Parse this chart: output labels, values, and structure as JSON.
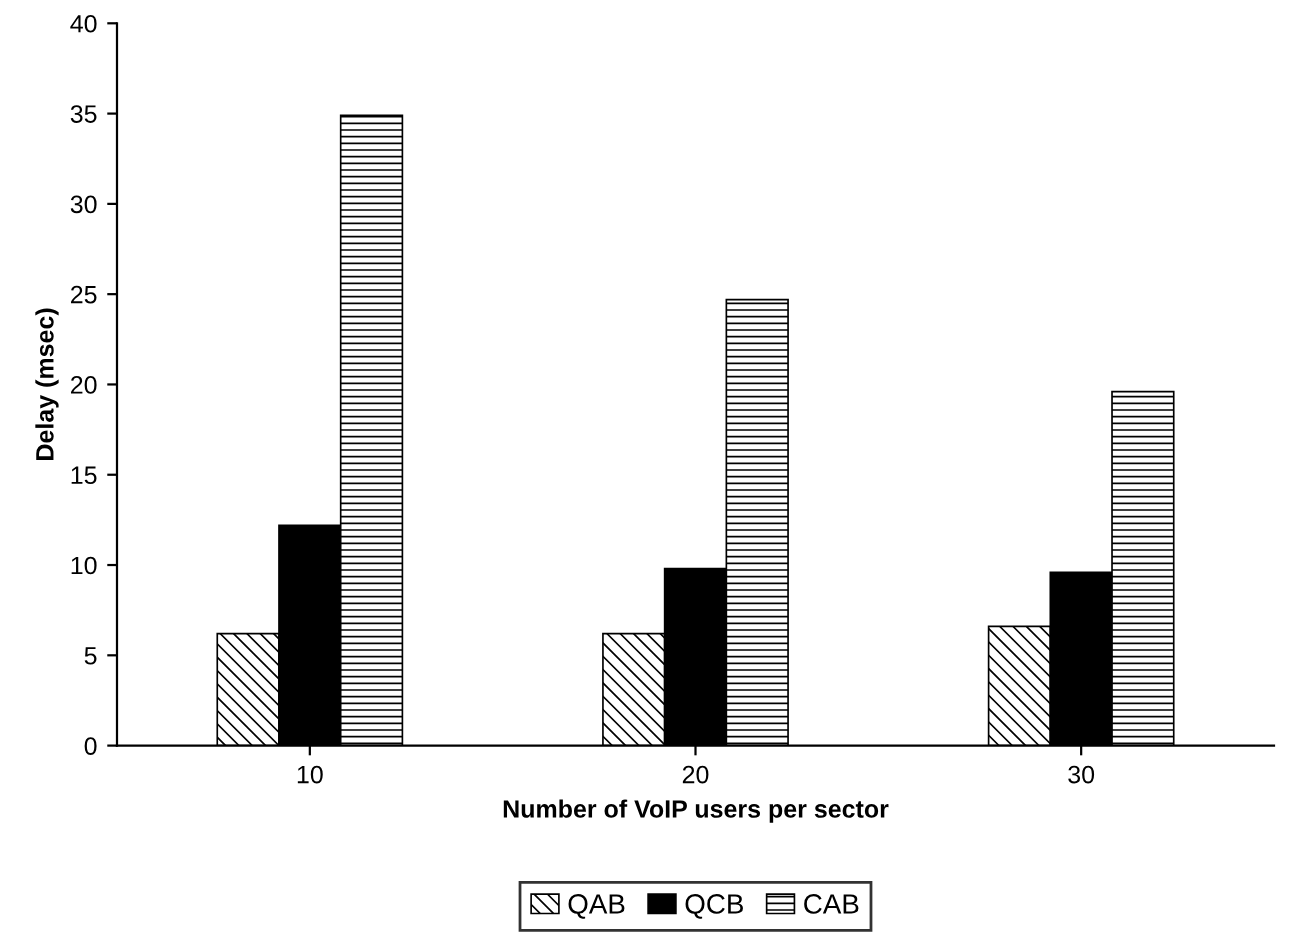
{
  "chart_data": {
    "type": "bar",
    "xlabel": "Number of VoIP users per sector",
    "ylabel": "Delay (msec)",
    "categories": [
      "10",
      "20",
      "30"
    ],
    "series": [
      {
        "name": "QAB",
        "color": "#000000",
        "values": [
          6.2,
          6.2,
          6.6
        ]
      },
      {
        "name": "QCB",
        "color": "#000000",
        "values": [
          12.2,
          9.8,
          9.6
        ]
      },
      {
        "name": "CAB",
        "color": "#000000",
        "values": [
          34.9,
          24.7,
          19.6
        ]
      }
    ],
    "ylim": [
      0,
      40
    ],
    "yticks": [
      0,
      5,
      10,
      15,
      20,
      25,
      30,
      35,
      40
    ],
    "grid": false,
    "legend": "bottom"
  }
}
